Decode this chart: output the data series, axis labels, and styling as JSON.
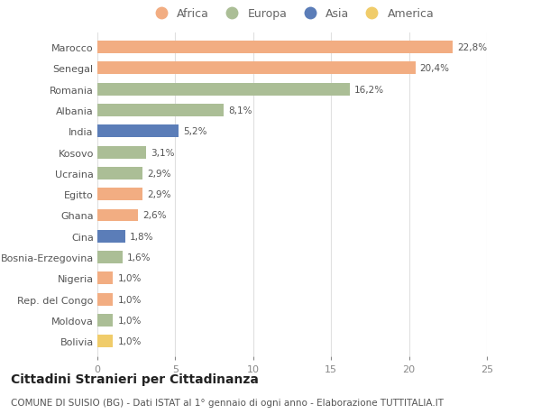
{
  "countries": [
    "Marocco",
    "Senegal",
    "Romania",
    "Albania",
    "India",
    "Kosovo",
    "Ucraina",
    "Egitto",
    "Ghana",
    "Cina",
    "Bosnia-Erzegovina",
    "Nigeria",
    "Rep. del Congo",
    "Moldova",
    "Bolivia"
  ],
  "values": [
    22.8,
    20.4,
    16.2,
    8.1,
    5.2,
    3.1,
    2.9,
    2.9,
    2.6,
    1.8,
    1.6,
    1.0,
    1.0,
    1.0,
    1.0
  ],
  "continents": [
    "Africa",
    "Africa",
    "Europa",
    "Europa",
    "Asia",
    "Europa",
    "Europa",
    "Africa",
    "Africa",
    "Asia",
    "Europa",
    "Africa",
    "Africa",
    "Europa",
    "America"
  ],
  "continent_colors": {
    "Africa": "#F2AD82",
    "Europa": "#ABBE96",
    "Asia": "#5B7DB8",
    "America": "#F0CC6A"
  },
  "legend_order": [
    "Africa",
    "Europa",
    "Asia",
    "America"
  ],
  "title": "Cittadini Stranieri per Cittadinanza",
  "subtitle": "COMUNE DI SUISIO (BG) - Dati ISTAT al 1° gennaio di ogni anno - Elaborazione TUTTITALIA.IT",
  "xlim": [
    0,
    25
  ],
  "xticks": [
    0,
    5,
    10,
    15,
    20,
    25
  ],
  "background_color": "#ffffff",
  "bar_height": 0.6,
  "title_fontsize": 10,
  "subtitle_fontsize": 7.5,
  "label_fontsize": 7.5,
  "ytick_fontsize": 8,
  "xtick_fontsize": 8,
  "legend_fontsize": 9
}
